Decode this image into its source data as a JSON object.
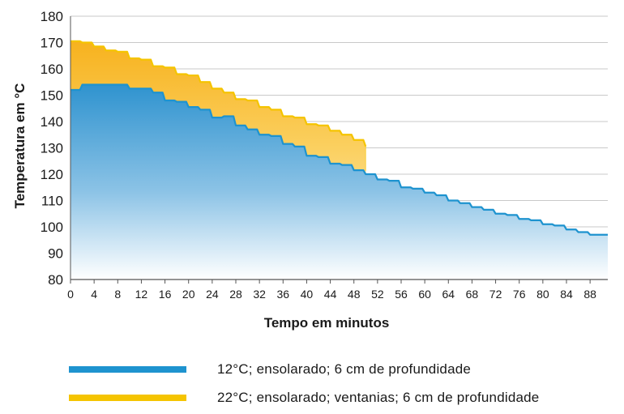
{
  "chart_data": {
    "type": "area",
    "xlabel": "Tempo em minutos",
    "ylabel": "Temperatura em °C",
    "xlim": [
      0,
      91
    ],
    "ylim": [
      80,
      180
    ],
    "xticks": [
      0,
      4,
      8,
      12,
      16,
      20,
      24,
      28,
      32,
      36,
      40,
      44,
      48,
      52,
      56,
      60,
      64,
      68,
      72,
      76,
      80,
      84,
      88
    ],
    "yticks": [
      80,
      90,
      100,
      110,
      120,
      130,
      140,
      150,
      160,
      170,
      180
    ],
    "grid": true,
    "legend_position": "bottom",
    "series": [
      {
        "name": "12°C; ensolarado; 6 cm de profundidade",
        "color": "#1e93cf",
        "x": [
          0,
          2,
          4,
          6,
          8,
          10,
          12,
          14,
          16,
          18,
          20,
          22,
          24,
          26,
          28,
          30,
          32,
          34,
          36,
          38,
          40,
          42,
          44,
          46,
          48,
          50,
          52,
          54,
          56,
          58,
          60,
          62,
          64,
          66,
          68,
          70,
          72,
          74,
          76,
          78,
          80,
          82,
          84,
          86,
          88,
          90
        ],
        "y": [
          152,
          154,
          154,
          154,
          154,
          152.5,
          152.5,
          151,
          148,
          147.5,
          145.5,
          144.5,
          141.5,
          142,
          138.5,
          137,
          135,
          134.5,
          131.5,
          130.5,
          127,
          126.5,
          124,
          123.5,
          121.5,
          120,
          118,
          117.5,
          115,
          114.5,
          113,
          112,
          110,
          109,
          107.5,
          106.5,
          105,
          104.5,
          103,
          102.5,
          101,
          100.5,
          99,
          98,
          97,
          97
        ]
      },
      {
        "name": "22°C; ensolarado; ventanias; 6 cm de profundidade",
        "color": "#f5c400",
        "x": [
          0,
          2,
          4,
          6,
          8,
          10,
          12,
          14,
          16,
          18,
          20,
          22,
          24,
          26,
          28,
          30,
          32,
          34,
          36,
          38,
          40,
          42,
          44,
          46,
          48,
          50
        ],
        "y": [
          170.5,
          170,
          168.5,
          167,
          166.5,
          164,
          163.5,
          161,
          160.5,
          158,
          157.5,
          155,
          152.5,
          151,
          148.5,
          148,
          145.5,
          144.5,
          142,
          141.5,
          139,
          138.5,
          136.5,
          135,
          133,
          130.5
        ]
      }
    ]
  }
}
